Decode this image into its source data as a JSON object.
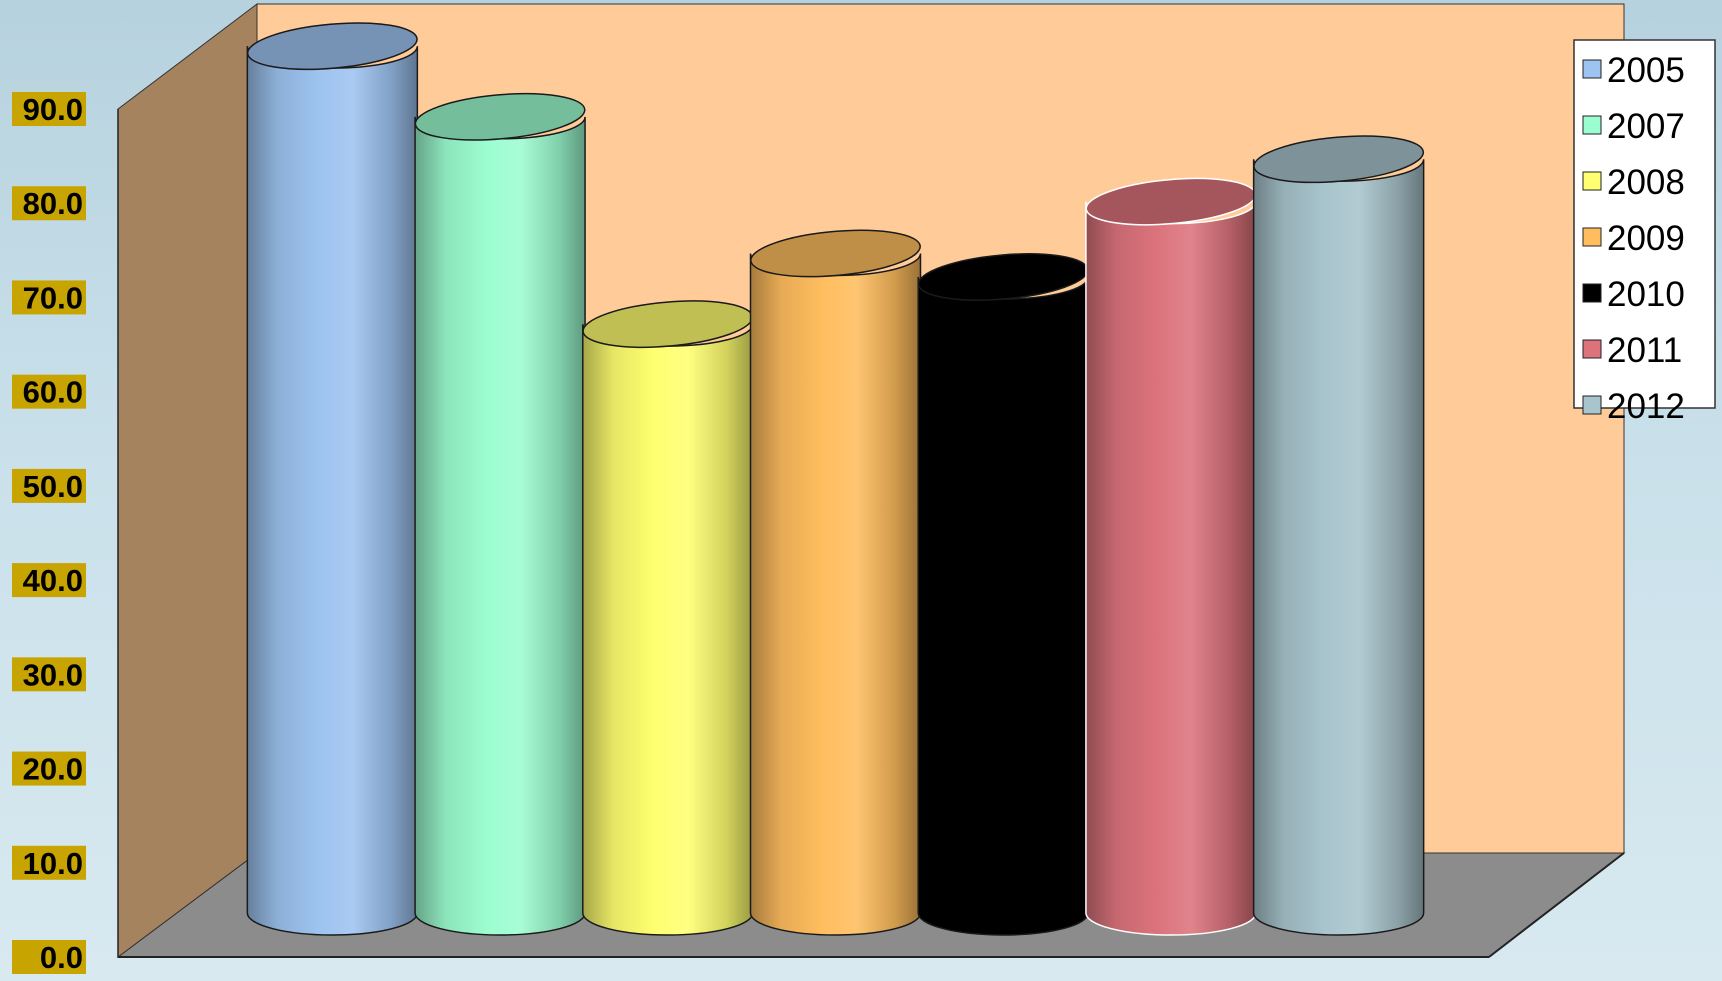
{
  "chart_data": {
    "type": "bar",
    "style": "3d-cylinder",
    "title": "",
    "xlabel": "",
    "ylabel": "",
    "ylim": [
      0,
      90
    ],
    "y_ticks": [
      "0.0",
      "10.0",
      "20.0",
      "30.0",
      "40.0",
      "50.0",
      "60.0",
      "70.0",
      "80.0",
      "90.0"
    ],
    "grid": false,
    "legend_position": "top-right",
    "series": [
      {
        "name": "2005",
        "value": 92.0,
        "color": "#9dc3f0"
      },
      {
        "name": "2007",
        "value": 84.5,
        "color": "#9cfdd0"
      },
      {
        "name": "2008",
        "value": 62.5,
        "color": "#ffff70"
      },
      {
        "name": "2009",
        "value": 70.0,
        "color": "#ffbd5e"
      },
      {
        "name": "2010",
        "value": 67.5,
        "color": "#000000"
      },
      {
        "name": "2011",
        "value": 75.5,
        "color": "#dc737c"
      },
      {
        "name": "2012",
        "value": 80.0,
        "color": "#a8c4cc"
      }
    ],
    "colors": {
      "back_wall": "#ffcc99",
      "side_wall": "#a6835f",
      "floor": "#8c8c8c",
      "tick_label_bg": "#c8a400"
    }
  }
}
